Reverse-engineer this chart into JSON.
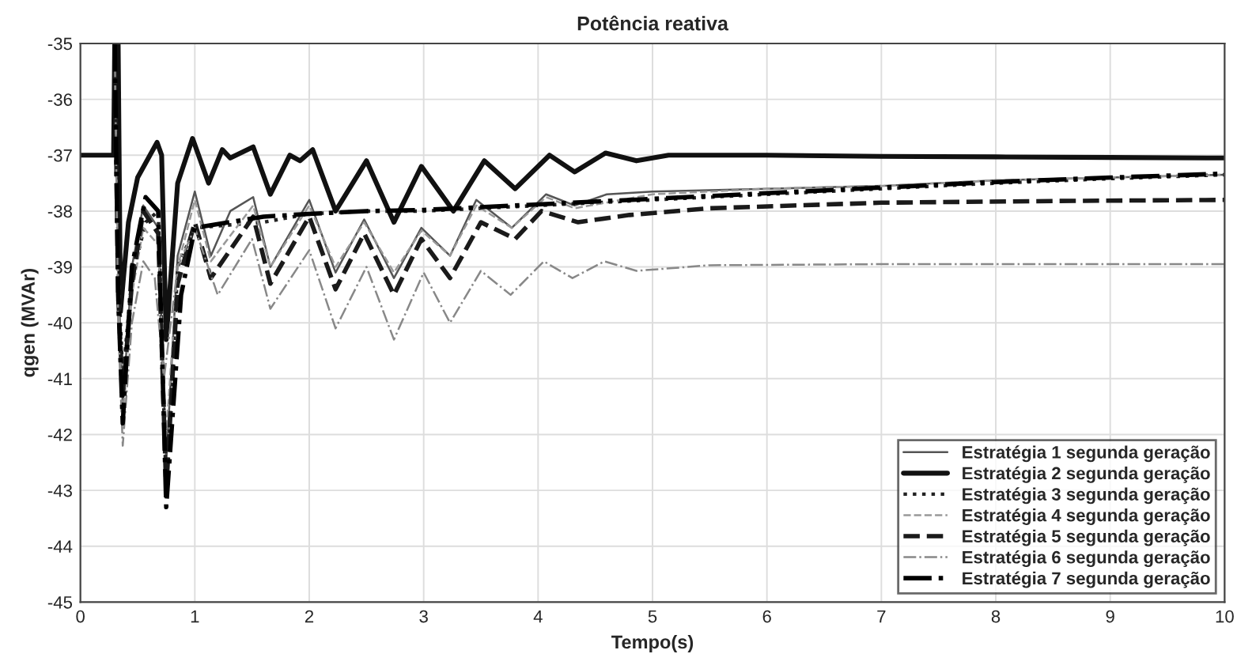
{
  "chart_data": {
    "type": "line",
    "title": "Potência reativa",
    "xlabel": "Tempo(s)",
    "ylabel": "qgen (MVAr)",
    "xlim": [
      0,
      10
    ],
    "ylim": [
      -45,
      -35
    ],
    "xticks": [
      0,
      1,
      2,
      3,
      4,
      5,
      6,
      7,
      8,
      9,
      10
    ],
    "yticks": [
      -45,
      -44,
      -43,
      -42,
      -41,
      -40,
      -39,
      -38,
      -37,
      -36,
      -35
    ],
    "grid": true,
    "legend": "bottom right",
    "series": [
      {
        "name": "Estratégia 1 segunda geração",
        "color": "#555555",
        "line_style": "solid",
        "x": [
          0.3,
          0.33,
          0.37,
          0.45,
          0.55,
          0.68,
          0.75,
          0.85,
          1.0,
          1.14,
          1.31,
          1.51,
          1.66,
          2.0,
          2.23,
          2.48,
          2.74,
          2.98,
          3.23,
          3.46,
          3.77,
          4.07,
          4.32,
          4.6,
          5,
          6,
          7,
          8,
          9,
          10
        ],
        "values": [
          -35,
          -39,
          -41.5,
          -39,
          -37.9,
          -38.3,
          -42.5,
          -38.8,
          -37.65,
          -38.8,
          -38.0,
          -37.75,
          -39.0,
          -37.8,
          -39.1,
          -38.15,
          -39.2,
          -38.3,
          -38.8,
          -37.8,
          -38.3,
          -37.7,
          -37.9,
          -37.7,
          -37.65,
          -37.6,
          -37.55,
          -37.45,
          -37.4,
          -37.35
        ]
      },
      {
        "name": "Estratégia 2 segunda geração",
        "color": "#111111",
        "line_style": "solid",
        "x": [
          0,
          0.29,
          0.3,
          0.33,
          0.35,
          0.42,
          0.5,
          0.67,
          0.71,
          0.75,
          0.85,
          0.98,
          1.12,
          1.24,
          1.31,
          1.51,
          1.66,
          1.83,
          1.92,
          2.03,
          2.23,
          2.5,
          2.74,
          2.98,
          3.26,
          3.53,
          3.8,
          4.1,
          4.32,
          4.59,
          4.86,
          5.14,
          6,
          7,
          8,
          9,
          10
        ],
        "values": [
          -37,
          -37,
          -35,
          -35,
          -39.8,
          -38.2,
          -37.4,
          -36.77,
          -37.0,
          -40.3,
          -37.5,
          -36.7,
          -37.5,
          -36.9,
          -37.05,
          -36.85,
          -37.7,
          -37.0,
          -37.1,
          -36.9,
          -38.0,
          -37.1,
          -38.2,
          -37.2,
          -38.0,
          -37.1,
          -37.6,
          -37.0,
          -37.3,
          -36.96,
          -37.1,
          -37.0,
          -37.0,
          -37.02,
          -37.03,
          -37.04,
          -37.05
        ]
      },
      {
        "name": "Estratégia 3 segunda geração",
        "color": "#222222",
        "line_style": "dotted",
        "x": [
          0.3,
          0.33,
          0.37,
          0.45,
          0.57,
          0.68,
          0.75,
          0.85,
          1.0,
          1.3,
          1.6,
          2.0,
          2.5,
          3.0,
          4,
          5,
          6,
          7,
          8,
          9,
          10
        ],
        "values": [
          -35,
          -39,
          -41.0,
          -39.2,
          -38.2,
          -38.0,
          -43.0,
          -39.0,
          -38.3,
          -38.25,
          -38.2,
          -38.05,
          -38.0,
          -38.0,
          -37.9,
          -37.8,
          -37.7,
          -37.6,
          -37.5,
          -37.42,
          -37.35
        ]
      },
      {
        "name": "Estratégia 4 segunda geração",
        "color": "#999999",
        "line_style": "dashed",
        "x": [
          0.3,
          0.33,
          0.37,
          0.45,
          0.55,
          0.68,
          0.75,
          0.85,
          1.0,
          1.14,
          1.51,
          1.66,
          2.0,
          2.23,
          2.48,
          2.74,
          2.98,
          3.23,
          3.46,
          3.77,
          4.07,
          4.32,
          5,
          6,
          7,
          8,
          9,
          10
        ],
        "values": [
          -35,
          -39.5,
          -41.8,
          -39.5,
          -38.3,
          -38.6,
          -42.0,
          -39.0,
          -37.8,
          -38.9,
          -37.9,
          -39.0,
          -37.9,
          -39.0,
          -38.2,
          -39.1,
          -38.35,
          -38.8,
          -37.9,
          -38.3,
          -37.75,
          -37.95,
          -37.7,
          -37.6,
          -37.55,
          -37.45,
          -37.4,
          -37.35
        ]
      },
      {
        "name": "Estratégia 5 segunda geração",
        "color": "#1a1a1a",
        "line_style": "dashed",
        "x": [
          0.3,
          0.33,
          0.37,
          0.45,
          0.55,
          0.68,
          0.75,
          0.85,
          1.0,
          1.14,
          1.51,
          1.66,
          2.0,
          2.23,
          2.48,
          2.74,
          2.98,
          3.23,
          3.5,
          3.8,
          4.03,
          4.35,
          4.8,
          5.5,
          7,
          8.5,
          10
        ],
        "values": [
          -35,
          -39.5,
          -41.3,
          -39.3,
          -38.0,
          -38.4,
          -43.0,
          -39.3,
          -38.2,
          -39.2,
          -38.1,
          -39.3,
          -38.1,
          -39.4,
          -38.4,
          -39.5,
          -38.5,
          -39.2,
          -38.2,
          -38.5,
          -38.0,
          -38.2,
          -38.07,
          -37.95,
          -37.85,
          -37.82,
          -37.8
        ]
      },
      {
        "name": "Estratégia 6 segunda geração",
        "color": "#888888",
        "line_style": "dashdot",
        "x": [
          0.3,
          0.33,
          0.37,
          0.45,
          0.55,
          0.65,
          0.73,
          0.85,
          1.0,
          1.2,
          1.5,
          1.66,
          2.0,
          2.23,
          2.5,
          2.74,
          3.0,
          3.23,
          3.5,
          3.76,
          4.05,
          4.3,
          4.58,
          4.86,
          5.5,
          7,
          8.5,
          10
        ],
        "values": [
          -35,
          -40,
          -42.2,
          -40.0,
          -38.9,
          -39.2,
          -41.0,
          -39.0,
          -38.3,
          -39.5,
          -38.5,
          -39.75,
          -38.7,
          -40.1,
          -39.0,
          -40.3,
          -39.1,
          -40.0,
          -39.07,
          -39.5,
          -38.9,
          -39.2,
          -38.9,
          -39.07,
          -38.97,
          -38.95,
          -38.95,
          -38.95
        ]
      },
      {
        "name": "Estratégia 7 segunda geração",
        "color": "#000000",
        "line_style": "dashdot",
        "x": [
          0.3,
          0.33,
          0.37,
          0.45,
          0.57,
          0.68,
          0.75,
          0.88,
          1.0,
          1.3,
          1.6,
          2.0,
          2.5,
          3.0,
          4,
          5,
          6,
          7,
          8,
          9,
          10
        ],
        "values": [
          -35,
          -39.5,
          -41.8,
          -39.0,
          -37.75,
          -38.0,
          -43.3,
          -39.5,
          -38.3,
          -38.2,
          -38.1,
          -38.05,
          -38.0,
          -37.98,
          -37.88,
          -37.78,
          -37.68,
          -37.58,
          -37.48,
          -37.4,
          -37.33
        ]
      }
    ]
  }
}
